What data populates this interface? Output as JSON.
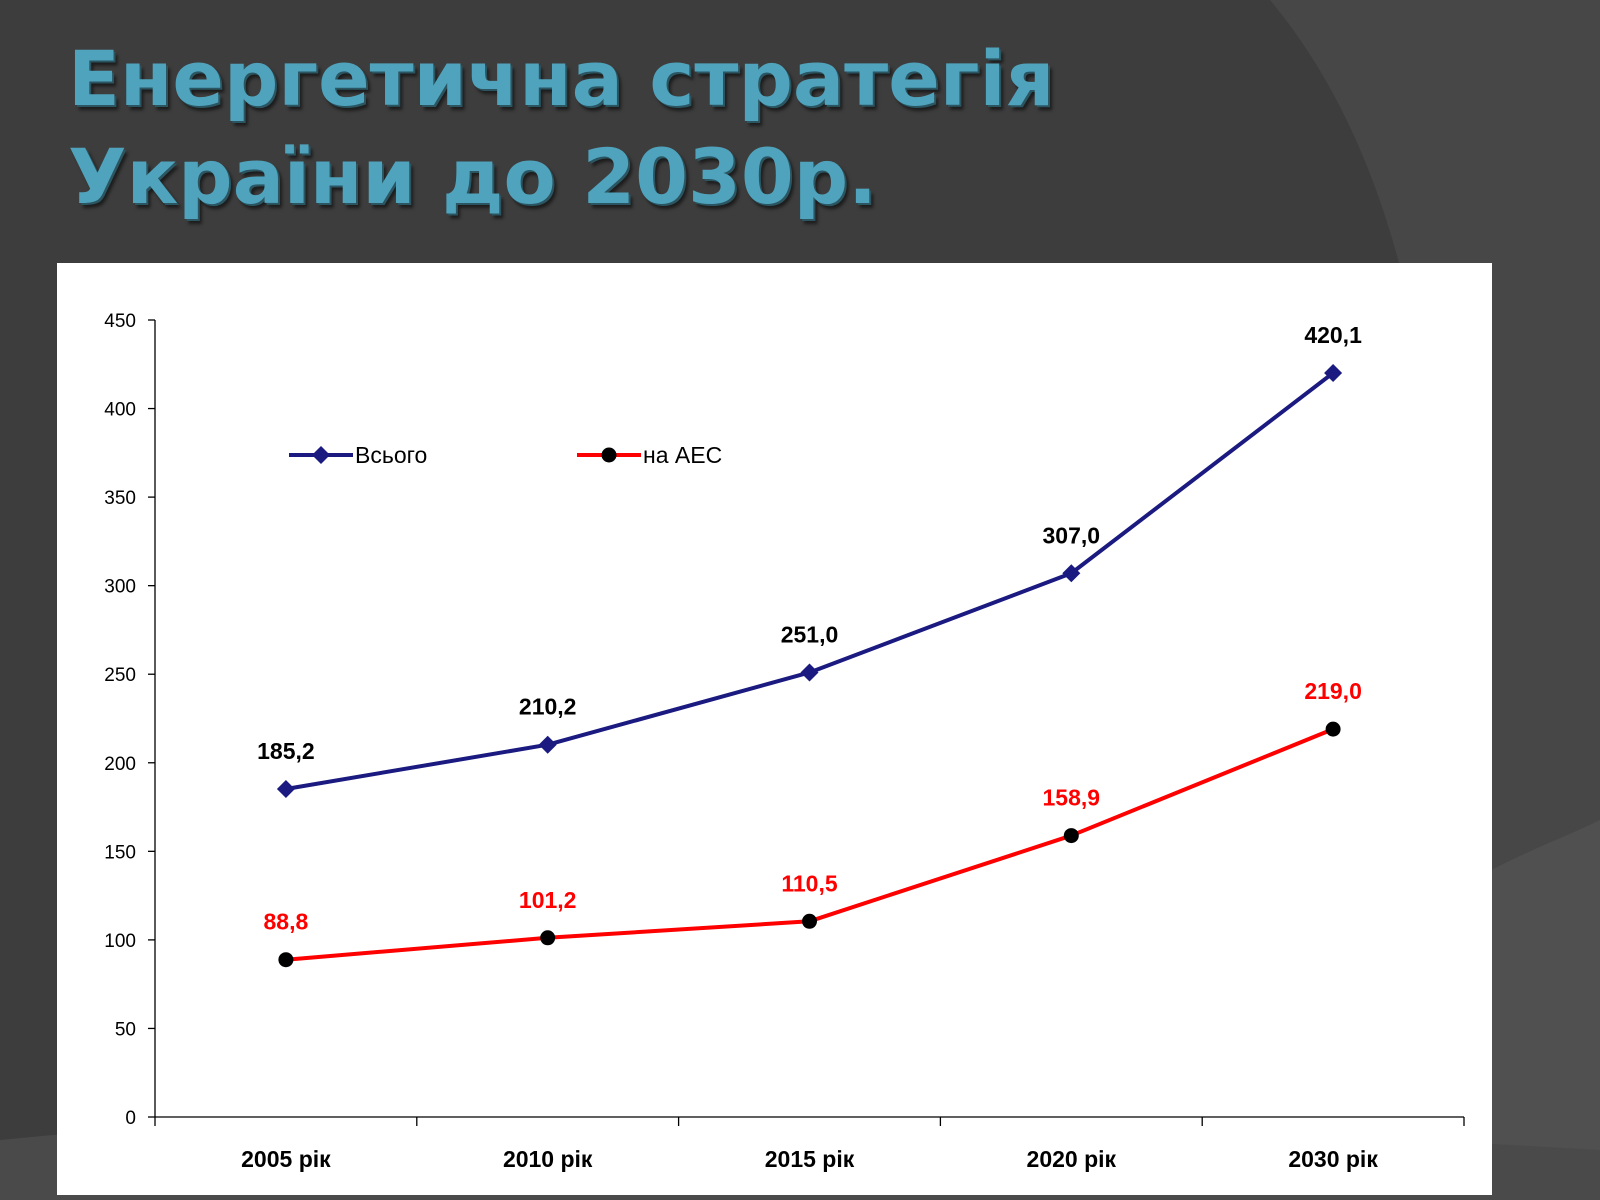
{
  "slide": {
    "title_line1": "Енергетична стратегія",
    "title_line2": "України до 2030р."
  },
  "colors": {
    "background": "#3d3d3d",
    "title": "#4fa3bd",
    "series_total": "#1a1a80",
    "series_nuclear": "#ff0000",
    "nuclear_marker": "#000000"
  },
  "chart_data": {
    "type": "line",
    "categories": [
      "2005 рік",
      "2010 рік",
      "2015 рік",
      "2020 рік",
      "2030 рік"
    ],
    "series": [
      {
        "name": "Всього",
        "values": [
          185.2,
          210.2,
          251.0,
          307.0,
          420.1
        ],
        "labels": [
          "185,2",
          "210,2",
          "251,0",
          "307,0",
          "420,1"
        ],
        "color": "#1a1a80",
        "marker": "diamond",
        "label_color": "#000000"
      },
      {
        "name": "на АЕС",
        "values": [
          88.8,
          101.2,
          110.5,
          158.9,
          219.0
        ],
        "labels": [
          "88,8",
          "101,2",
          "110,5",
          "158,9",
          "219,0"
        ],
        "color": "#ff0000",
        "marker": "circle",
        "label_color": "#ff0000"
      }
    ],
    "ylim": [
      0,
      450
    ],
    "yticks": [
      "0",
      "50",
      "100",
      "150",
      "200",
      "250",
      "300",
      "350",
      "400",
      "450"
    ],
    "grid": false,
    "legend": "top-left"
  }
}
